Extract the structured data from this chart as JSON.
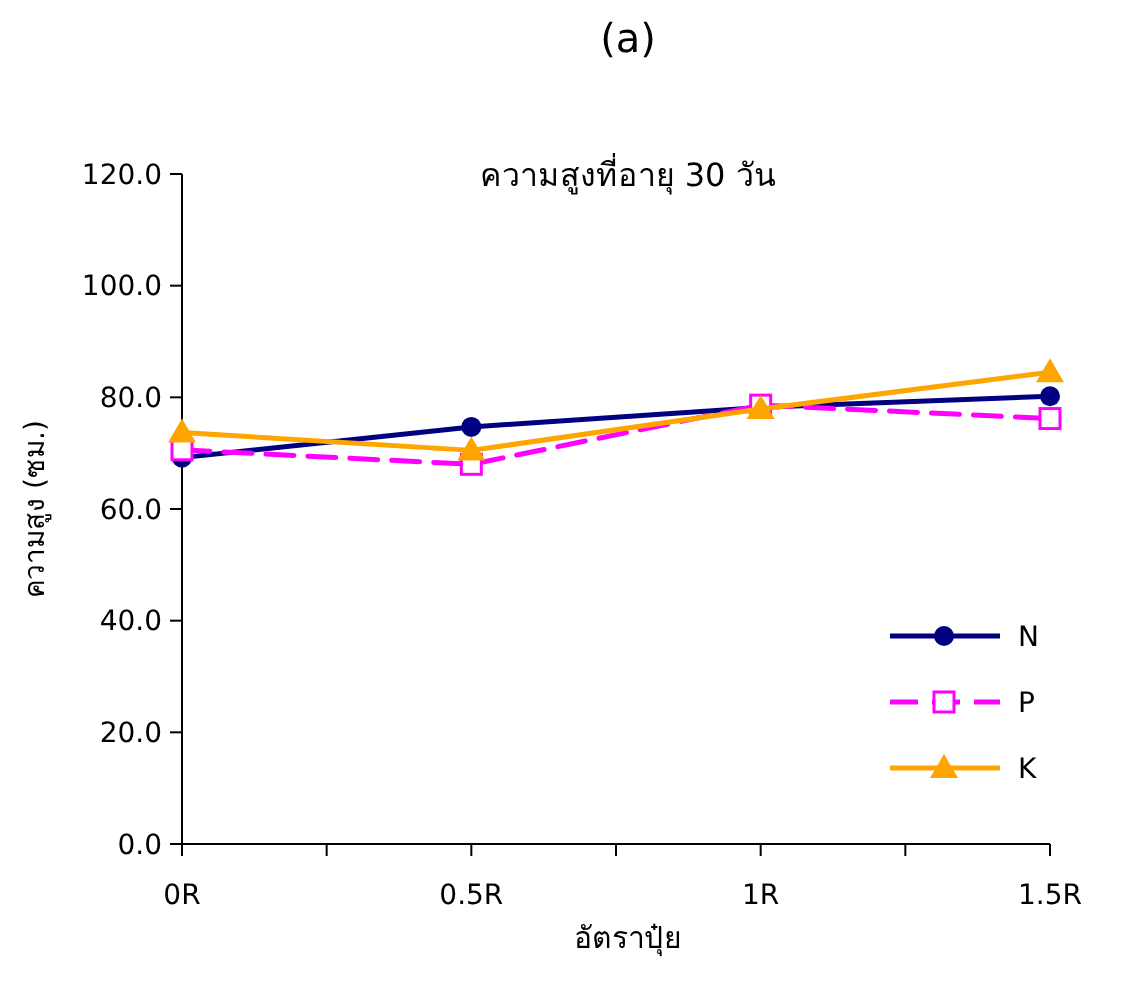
{
  "chart_data": {
    "type": "line",
    "title": "(a)",
    "subtitle": "ความสูงที่อายุ 30 วัน",
    "xlabel": "อัตราปุ๋ย",
    "ylabel": "ความสูง (ซม.)",
    "categories": [
      "0R",
      "0.5R",
      "1R",
      "1.5R"
    ],
    "series": [
      {
        "name": "N",
        "color": "#000080",
        "values": [
          69.2,
          74.7,
          78.2,
          80.2
        ],
        "marker": "circle",
        "line_style": "solid"
      },
      {
        "name": "P",
        "color": "#ff00ff",
        "values": [
          70.6,
          68.0,
          78.6,
          76.2
        ],
        "marker": "square",
        "line_style": "dashed"
      },
      {
        "name": "K",
        "color": "#ffa500",
        "values": [
          73.7,
          70.5,
          77.9,
          84.5
        ],
        "marker": "triangle",
        "line_style": "solid"
      }
    ],
    "ylim": [
      0,
      120
    ],
    "yticks": [
      {
        "value": 0,
        "label": "0.0"
      },
      {
        "value": 20,
        "label": "20.0"
      },
      {
        "value": 40,
        "label": "40.0"
      },
      {
        "value": 60,
        "label": "60.0"
      },
      {
        "value": 80,
        "label": "80.0"
      },
      {
        "value": 100,
        "label": "100.0"
      },
      {
        "value": 120,
        "label": "120.0"
      }
    ],
    "legend": "bottom right",
    "grid": false
  }
}
